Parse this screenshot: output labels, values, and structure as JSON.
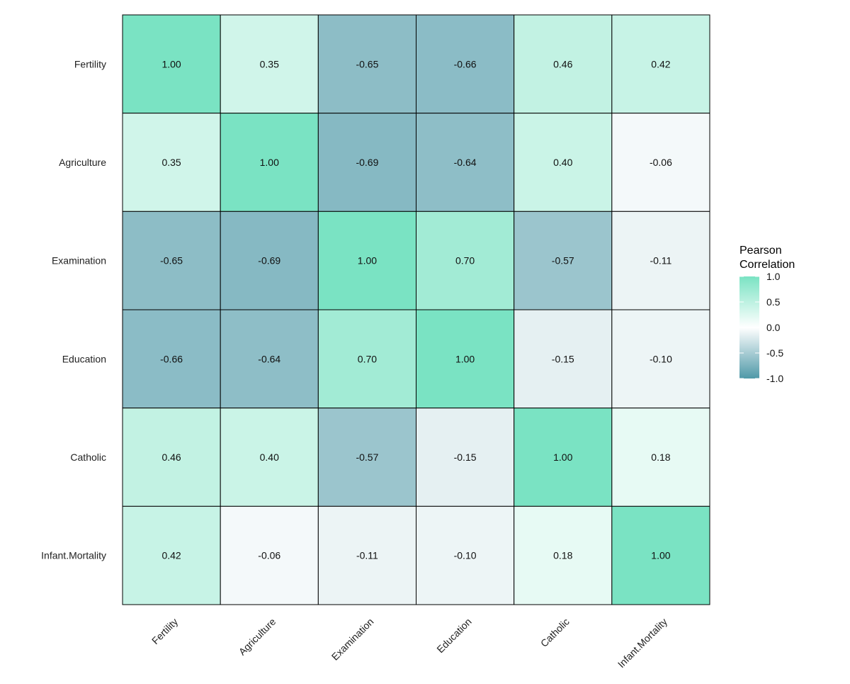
{
  "chart_data": {
    "type": "heatmap",
    "title": "",
    "xlabel": "",
    "ylabel": "",
    "variables": [
      "Fertility",
      "Agriculture",
      "Examination",
      "Education",
      "Catholic",
      "Infant.Mortality"
    ],
    "matrix": [
      [
        1.0,
        0.35,
        -0.65,
        -0.66,
        0.46,
        0.42
      ],
      [
        0.35,
        1.0,
        -0.69,
        -0.64,
        0.4,
        -0.06
      ],
      [
        -0.65,
        -0.69,
        1.0,
        0.7,
        -0.57,
        -0.11
      ],
      [
        -0.66,
        -0.64,
        0.7,
        1.0,
        -0.15,
        -0.1
      ],
      [
        0.46,
        0.4,
        -0.57,
        -0.15,
        1.0,
        0.18
      ],
      [
        0.42,
        -0.06,
        -0.11,
        -0.1,
        0.18,
        1.0
      ]
    ],
    "legend": {
      "title_lines": [
        "Pearson",
        "Correlation"
      ],
      "ticks": [
        1.0,
        0.5,
        0.0,
        -0.5,
        -1.0
      ],
      "tick_labels": [
        "1.0",
        "0.5",
        "0.0",
        "-0.5",
        "-1.0"
      ],
      "range": [
        -1,
        1
      ],
      "placement": "right"
    },
    "colors": {
      "low": "#4f99a8",
      "mid": "#ffffff",
      "high": "#7ae3c3"
    }
  }
}
